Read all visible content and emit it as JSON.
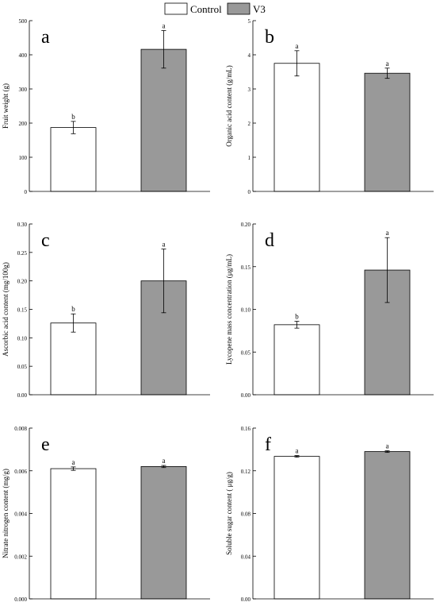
{
  "legend": {
    "position": "top-center",
    "entries": [
      {
        "label": "Control",
        "color": "#ffffff"
      },
      {
        "label": "V3",
        "color": "#999999"
      }
    ]
  },
  "colors": {
    "control": "#ffffff",
    "v3": "#999999",
    "axis": "#000000"
  },
  "chart_data": [
    {
      "type": "bar",
      "panel_label": "a",
      "categories": [
        "Control",
        "V3"
      ],
      "ylabel": "Fruit weight (g)",
      "ylim": [
        0,
        500
      ],
      "yticks": [
        0,
        100,
        200,
        300,
        400,
        500
      ],
      "ytick_labels": [
        "0",
        "100",
        "200",
        "300",
        "400",
        "500"
      ],
      "values": [
        187,
        416
      ],
      "errors": [
        18,
        55
      ],
      "letters": [
        "b",
        "a"
      ],
      "grid": false
    },
    {
      "type": "bar",
      "panel_label": "b",
      "categories": [
        "Control",
        "V3"
      ],
      "ylabel": "Organic acid content (g/mL)",
      "ylim": [
        0,
        5
      ],
      "yticks": [
        0,
        1,
        2,
        3,
        4,
        5
      ],
      "ytick_labels": [
        "0",
        "1",
        "2",
        "3",
        "4",
        "5"
      ],
      "values": [
        3.75,
        3.46
      ],
      "errors": [
        0.37,
        0.15
      ],
      "letters": [
        "a",
        "a"
      ],
      "grid": false
    },
    {
      "type": "bar",
      "panel_label": "c",
      "categories": [
        "Control",
        "V3"
      ],
      "ylabel": "Ascorbic acid content (mg/100g)",
      "ylim": [
        0,
        0.3
      ],
      "yticks": [
        0,
        0.05,
        0.1,
        0.15,
        0.2,
        0.25,
        0.3
      ],
      "ytick_labels": [
        "0.00",
        "0.05",
        "0.10",
        "0.15",
        "0.20",
        "0.25",
        "0.30"
      ],
      "values": [
        0.126,
        0.2
      ],
      "errors": [
        0.016,
        0.056
      ],
      "letters": [
        "b",
        "a"
      ],
      "grid": false
    },
    {
      "type": "bar",
      "panel_label": "d",
      "categories": [
        "Control",
        "V3"
      ],
      "ylabel": "Lycopene mass concentration (μg/mL)",
      "ylim": [
        0,
        0.2
      ],
      "yticks": [
        0,
        0.05,
        0.1,
        0.15,
        0.2
      ],
      "ytick_labels": [
        "0.00",
        "0.05",
        "0.10",
        "0.15",
        "0.20"
      ],
      "values": [
        0.082,
        0.146
      ],
      "errors": [
        0.004,
        0.038
      ],
      "letters": [
        "b",
        "a"
      ],
      "grid": false
    },
    {
      "type": "bar",
      "panel_label": "e",
      "categories": [
        "Control",
        "V3"
      ],
      "ylabel": "Nitrate nitrogen content (mg/g)",
      "ylim": [
        0,
        0.008
      ],
      "yticks": [
        0,
        0.002,
        0.004,
        0.006,
        0.008
      ],
      "ytick_labels": [
        "0.000",
        "0.002",
        "0.004",
        "0.006",
        "0.008"
      ],
      "values": [
        0.0061,
        0.0062
      ],
      "errors": [
        8e-05,
        5e-05
      ],
      "letters": [
        "a",
        "a"
      ],
      "grid": false
    },
    {
      "type": "bar",
      "panel_label": "f",
      "categories": [
        "Control",
        "V3"
      ],
      "ylabel": "Soluble sugar content ( μg/g)",
      "ylim": [
        0,
        0.16
      ],
      "yticks": [
        0,
        0.04,
        0.08,
        0.12,
        0.16
      ],
      "ytick_labels": [
        "0.00",
        "0.04",
        "0.08",
        "0.12",
        "0.16"
      ],
      "values": [
        0.1335,
        0.138
      ],
      "errors": [
        0.0008,
        0.0008
      ],
      "letters": [
        "a",
        "a"
      ],
      "grid": false
    }
  ]
}
